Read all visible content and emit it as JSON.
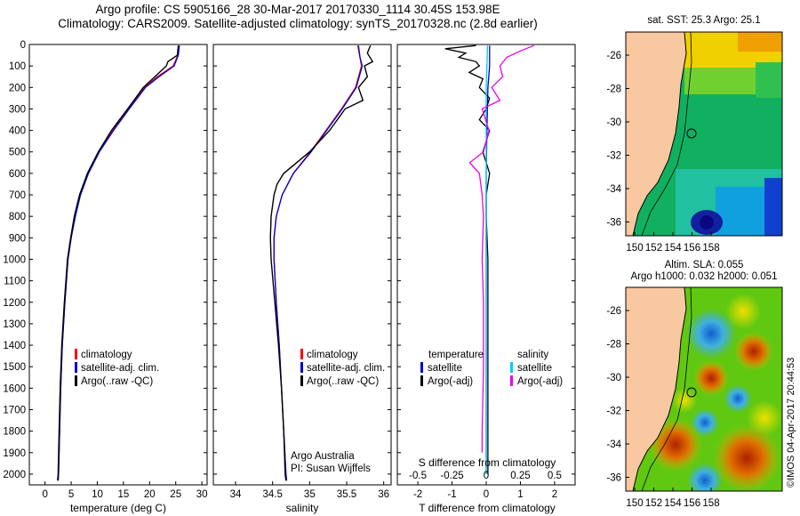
{
  "header": {
    "line1": "Argo profile: CS 5905166_28 30-Mar-2017 20170330_1114 30.45S 153.98E",
    "line2": "Climatology: CARS2009. Satellite-adjusted climatology: synTS_20170328.nc (2.8d earlier)"
  },
  "colors": {
    "climatology": "#ff0000",
    "satellite": "#0000cc",
    "argo": "#000000",
    "sat_s": "#00ccff",
    "argo_s": "#ee00ee",
    "land": "#f8c8a0"
  },
  "chart_data": [
    {
      "type": "line",
      "xlabel": "temperature (deg C)",
      "xlim": [
        -3,
        31
      ],
      "ylim": [
        2050,
        0
      ],
      "xticks": [
        0,
        5,
        10,
        15,
        20,
        25,
        30
      ],
      "yticks": [
        0,
        100,
        200,
        300,
        400,
        500,
        600,
        700,
        800,
        900,
        1000,
        1100,
        1200,
        1300,
        1400,
        1500,
        1600,
        1700,
        1800,
        1900,
        2000
      ],
      "legend": [
        "climatology",
        "satellite-adj. clim.",
        "Argo(..raw -QC)"
      ],
      "series": [
        {
          "name": "climatology",
          "depth": [
            5,
            50,
            100,
            150,
            200,
            300,
            400,
            500,
            600,
            700,
            800,
            900,
            1000,
            1200,
            1400,
            1600,
            1800,
            2000,
            2030
          ],
          "values": [
            25.6,
            25.4,
            24.5,
            21.5,
            19.0,
            16.0,
            13.0,
            10.3,
            8.2,
            6.7,
            5.7,
            5.0,
            4.4,
            3.8,
            3.3,
            3.0,
            2.8,
            2.6,
            2.5
          ]
        },
        {
          "name": "satellite-adj. clim.",
          "depth": [
            5,
            50,
            100,
            150,
            200,
            300,
            400,
            500,
            600,
            700,
            800,
            900,
            1000,
            1200,
            1400,
            1600,
            1800,
            2000,
            2030
          ],
          "values": [
            25.7,
            25.5,
            24.7,
            21.8,
            19.2,
            16.1,
            13.1,
            10.4,
            8.3,
            6.8,
            5.8,
            5.0,
            4.4,
            3.8,
            3.3,
            3.0,
            2.8,
            2.6,
            2.5
          ]
        },
        {
          "name": "Argo(..raw -QC)",
          "depth": [
            5,
            50,
            80,
            100,
            150,
            200,
            300,
            400,
            500,
            600,
            700,
            800,
            900,
            1000,
            1200,
            1400,
            1600,
            1800,
            2000,
            2030
          ],
          "values": [
            25.5,
            25.3,
            23.5,
            23.2,
            21.0,
            18.8,
            15.8,
            12.7,
            10.2,
            8.1,
            6.6,
            5.6,
            4.9,
            4.3,
            3.7,
            3.2,
            2.9,
            2.7,
            2.5,
            2.4
          ]
        }
      ]
    },
    {
      "type": "line",
      "xlabel": "salinity",
      "xlim": [
        33.7,
        36.1
      ],
      "ylim": [
        2050,
        0
      ],
      "xticks": [
        34,
        34.5,
        35,
        35.5,
        36
      ],
      "legend": [
        "climatology",
        "satellite-adj. clim.",
        "Argo(..raw -QC)"
      ],
      "series": [
        {
          "name": "climatology",
          "depth": [
            5,
            60,
            100,
            200,
            300,
            400,
            500,
            600,
            700,
            800,
            900,
            1000,
            1200,
            1400,
            1600,
            1800,
            2000,
            2030
          ],
          "values": [
            35.65,
            35.68,
            35.7,
            35.62,
            35.43,
            35.22,
            35.01,
            34.78,
            34.63,
            34.55,
            34.52,
            34.52,
            34.55,
            34.59,
            34.62,
            34.65,
            34.68,
            34.69
          ]
        },
        {
          "name": "satellite-adj. clim.",
          "depth": [
            5,
            60,
            100,
            200,
            300,
            400,
            500,
            600,
            700,
            800,
            900,
            1000,
            1200,
            1400,
            1600,
            1800,
            2000,
            2030
          ],
          "values": [
            35.66,
            35.68,
            35.71,
            35.63,
            35.44,
            35.23,
            35.02,
            34.78,
            34.63,
            34.55,
            34.52,
            34.52,
            34.55,
            34.59,
            34.62,
            34.65,
            34.68,
            34.69
          ]
        },
        {
          "name": "Argo(..raw -QC)",
          "depth": [
            5,
            40,
            80,
            100,
            150,
            200,
            260,
            300,
            400,
            500,
            600,
            650,
            700,
            800,
            900,
            1000,
            1200,
            1400,
            1600,
            1800,
            2000,
            2030
          ],
          "values": [
            35.82,
            35.78,
            35.85,
            35.74,
            35.78,
            35.66,
            35.72,
            35.48,
            35.27,
            35.0,
            34.65,
            34.56,
            34.52,
            34.48,
            34.47,
            34.48,
            34.53,
            34.58,
            34.62,
            34.65,
            34.67,
            34.68
          ]
        }
      ]
    },
    {
      "type": "line",
      "xlabel": "T difference from climatology",
      "xlabel2": "S difference from climatology",
      "xlim": [
        -2.6,
        2.6
      ],
      "ylim": [
        2050,
        0
      ],
      "xticks": [
        -2,
        -1,
        0,
        1,
        2
      ],
      "xticks_s": [
        "-0.5",
        "-0.25",
        "0",
        "0.25",
        "0.5"
      ],
      "legend": {
        "temperature": [
          "satellite",
          "Argo(-adj)"
        ],
        "salinity": [
          "satellite",
          "Argo(-adj)"
        ]
      },
      "legend_headers": [
        "temperature",
        "salinity"
      ],
      "series": [
        {
          "name": "temperature satellite",
          "depth": [
            5,
            100,
            200,
            400,
            600,
            800,
            1000,
            1500,
            2000
          ],
          "values": [
            0.1,
            0.1,
            0.05,
            0.02,
            0.0,
            0.0,
            0.0,
            0.0,
            0.0
          ]
        },
        {
          "name": "temperature Argo(-adj)",
          "depth": [
            5,
            20,
            40,
            60,
            80,
            100,
            130,
            160,
            200,
            250,
            300,
            350,
            400,
            450,
            500,
            600,
            700,
            800,
            1000,
            1200,
            1500,
            1800,
            2000
          ],
          "values": [
            -0.3,
            -1.2,
            -0.6,
            -0.8,
            -0.3,
            -0.2,
            -0.5,
            -0.1,
            -0.2,
            0.1,
            0.0,
            -0.2,
            0.1,
            0.0,
            -0.1,
            0.1,
            0.0,
            0.0,
            0.05,
            0.05,
            0.05,
            0.05,
            0.05
          ]
        },
        {
          "name": "salinity satellite",
          "depth": [
            5,
            200,
            500,
            1000,
            1500,
            2000
          ],
          "values": [
            0.01,
            0.0,
            0.0,
            0.0,
            0.0,
            0.0
          ]
        },
        {
          "name": "salinity Argo(-adj)",
          "depth": [
            5,
            30,
            60,
            100,
            150,
            200,
            260,
            300,
            400,
            500,
            550,
            600,
            700,
            800,
            1000,
            1200,
            1500,
            1800,
            1900
          ],
          "values": [
            0.35,
            0.25,
            0.15,
            0.1,
            0.12,
            0.04,
            0.1,
            -0.03,
            0.02,
            -0.02,
            -0.12,
            -0.05,
            -0.03,
            -0.02,
            -0.03,
            -0.02,
            -0.02,
            -0.03,
            -0.03
          ]
        }
      ]
    }
  ],
  "map1": {
    "title": "sat. SST: 25.3 Argo: 25.1",
    "xticks": [
      "150",
      "152",
      "154",
      "156",
      "158"
    ],
    "yticks": [
      "-26",
      "-28",
      "-30",
      "-32",
      "-34",
      "-36"
    ]
  },
  "map2": {
    "title1": "Altim. SLA: 0.055",
    "title2": "Argo h1000: 0.032 h2000: 0.051",
    "xticks": [
      "150",
      "152",
      "154",
      "156",
      "158"
    ],
    "yticks": [
      "-26",
      "-28",
      "-30",
      "-32",
      "-34",
      "-36"
    ]
  },
  "credit": "©IMOS 04-Apr-2017 20:44:53",
  "text": {
    "argo_australia": "Argo Australia",
    "pi": "PI: Susan Wijffels"
  }
}
